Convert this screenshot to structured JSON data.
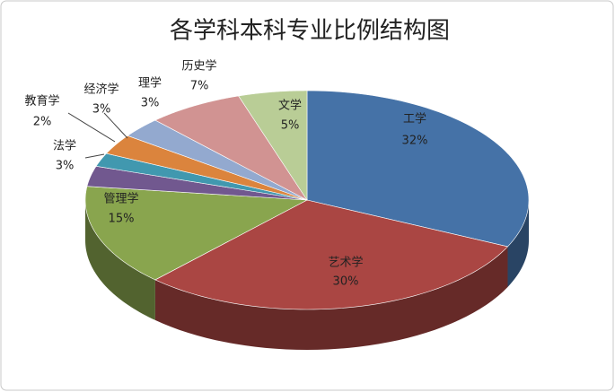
{
  "chart_data": {
    "type": "pie3d",
    "title": "各学科本科专业比例结构图",
    "categories": [
      "工学",
      "艺术学",
      "管理学",
      "法学",
      "教育学",
      "经济学",
      "理学",
      "历史学",
      "文学"
    ],
    "values": [
      32,
      30,
      15,
      3,
      2,
      3,
      3,
      7,
      5
    ],
    "value_labels": [
      "32%",
      "30%",
      "15%",
      "3%",
      "2%",
      "3%",
      "3%",
      "7%",
      "5%"
    ],
    "colors": [
      "#4572a7",
      "#aa4643",
      "#89a54e",
      "#71588f",
      "#4198af",
      "#db843d",
      "#93a9cf",
      "#d19392",
      "#b9cd96"
    ]
  }
}
